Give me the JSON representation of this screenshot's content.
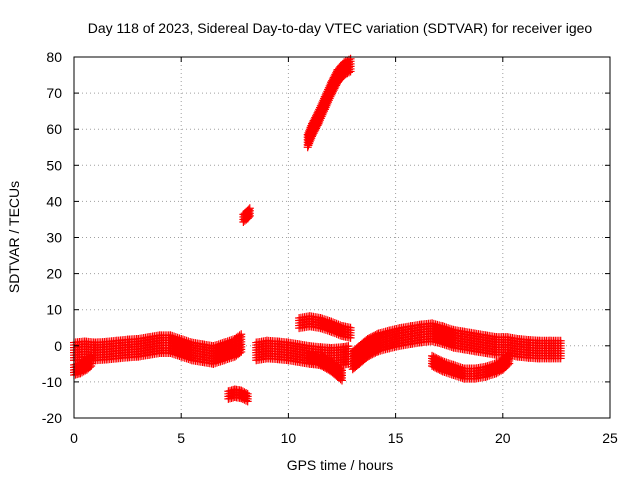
{
  "chart_data": {
    "type": "scatter",
    "title": "Day 118 of 2023, Sidereal Day-to-day VTEC variation (SDTVAR) for receiver igeo",
    "xlabel": "GPS time / hours",
    "ylabel": "SDTVAR / TECUs",
    "xlim": [
      0,
      25
    ],
    "ylim": [
      -20,
      80
    ],
    "xticks": [
      0,
      5,
      10,
      15,
      20,
      25
    ],
    "yticks": [
      -20,
      -10,
      0,
      10,
      20,
      30,
      40,
      50,
      60,
      70,
      80
    ],
    "grid": true,
    "marker": "+",
    "series_color": "#ff0000",
    "series": [
      {
        "name": "arc-main-band",
        "width": 2.5,
        "points": [
          [
            0.0,
            -1.5
          ],
          [
            0.5,
            -1.2
          ],
          [
            1.0,
            -1.5
          ],
          [
            1.5,
            -1.3
          ],
          [
            2.0,
            -1.0
          ],
          [
            2.5,
            -0.7
          ],
          [
            3.0,
            -0.5
          ],
          [
            3.5,
            0.0
          ],
          [
            4.0,
            0.5
          ],
          [
            4.5,
            0.5
          ],
          [
            5.0,
            -0.5
          ],
          [
            5.5,
            -1.5
          ],
          [
            6.0,
            -2.0
          ],
          [
            6.5,
            -2.5
          ],
          [
            7.0,
            -1.5
          ],
          [
            7.5,
            -0.5
          ],
          [
            7.8,
            0.8
          ]
        ]
      },
      {
        "name": "arc-early-dip",
        "width": 1.6,
        "points": [
          [
            0.0,
            -6.5
          ],
          [
            0.3,
            -6.0
          ],
          [
            0.6,
            -5.0
          ],
          [
            0.8,
            -4.0
          ]
        ]
      },
      {
        "name": "arc-low-7.5",
        "width": 1.2,
        "points": [
          [
            7.2,
            -13.5
          ],
          [
            7.5,
            -13.0
          ],
          [
            7.8,
            -13.3
          ],
          [
            8.1,
            -14.2
          ]
        ]
      },
      {
        "name": "arc-high-8",
        "width": 1.2,
        "points": [
          [
            7.9,
            35.5
          ],
          [
            8.1,
            36.5
          ],
          [
            8.2,
            37.2
          ]
        ]
      },
      {
        "name": "arc-8-to-13",
        "width": 2.5,
        "points": [
          [
            8.5,
            -1.5
          ],
          [
            9.0,
            -1.0
          ],
          [
            9.5,
            -1.2
          ],
          [
            10.0,
            -1.5
          ],
          [
            10.5,
            -2.0
          ],
          [
            11.0,
            -2.5
          ],
          [
            11.5,
            -2.8
          ],
          [
            12.0,
            -3.0
          ],
          [
            12.5,
            -2.8
          ],
          [
            12.8,
            -2.5
          ]
        ]
      },
      {
        "name": "arc-11-13-dip",
        "width": 1.6,
        "points": [
          [
            11.0,
            -3.0
          ],
          [
            11.5,
            -3.8
          ],
          [
            12.0,
            -5.5
          ],
          [
            12.3,
            -7.0
          ],
          [
            12.5,
            -8.0
          ]
        ]
      },
      {
        "name": "arc-rising",
        "width": 2.0,
        "points": [
          [
            10.9,
            57.0
          ],
          [
            11.1,
            60.0
          ],
          [
            11.4,
            63.5
          ],
          [
            11.7,
            67.5
          ],
          [
            12.0,
            71.5
          ],
          [
            12.3,
            75.0
          ],
          [
            12.6,
            77.0
          ],
          [
            12.9,
            78.0
          ]
        ]
      },
      {
        "name": "arc-11-13-mid",
        "width": 1.6,
        "points": [
          [
            10.5,
            6.5
          ],
          [
            11.0,
            7.0
          ],
          [
            11.5,
            6.5
          ],
          [
            12.0,
            5.5
          ],
          [
            12.5,
            4.3
          ],
          [
            12.9,
            3.8
          ]
        ]
      },
      {
        "name": "arc-13-23",
        "width": 2.5,
        "points": [
          [
            13.0,
            -4.0
          ],
          [
            13.3,
            -2.5
          ],
          [
            13.7,
            -0.5
          ],
          [
            14.2,
            1.0
          ],
          [
            14.7,
            1.8
          ],
          [
            15.2,
            2.5
          ],
          [
            15.7,
            3.0
          ],
          [
            16.2,
            3.5
          ],
          [
            16.7,
            3.8
          ],
          [
            17.2,
            3.0
          ],
          [
            17.7,
            2.0
          ],
          [
            18.2,
            1.5
          ],
          [
            18.7,
            1.0
          ],
          [
            19.2,
            0.5
          ],
          [
            19.7,
            0.0
          ],
          [
            20.2,
            0.0
          ],
          [
            20.7,
            -0.5
          ],
          [
            21.2,
            -0.8
          ],
          [
            21.7,
            -1.0
          ],
          [
            22.2,
            -1.0
          ],
          [
            22.7,
            -1.0
          ]
        ]
      },
      {
        "name": "arc-17-20-dip",
        "width": 1.6,
        "points": [
          [
            16.7,
            -4.0
          ],
          [
            17.2,
            -5.5
          ],
          [
            17.7,
            -6.5
          ],
          [
            18.2,
            -7.5
          ],
          [
            18.7,
            -7.5
          ],
          [
            19.2,
            -7.0
          ],
          [
            19.7,
            -6.0
          ],
          [
            20.0,
            -5.0
          ],
          [
            20.3,
            -3.3
          ]
        ]
      }
    ]
  }
}
